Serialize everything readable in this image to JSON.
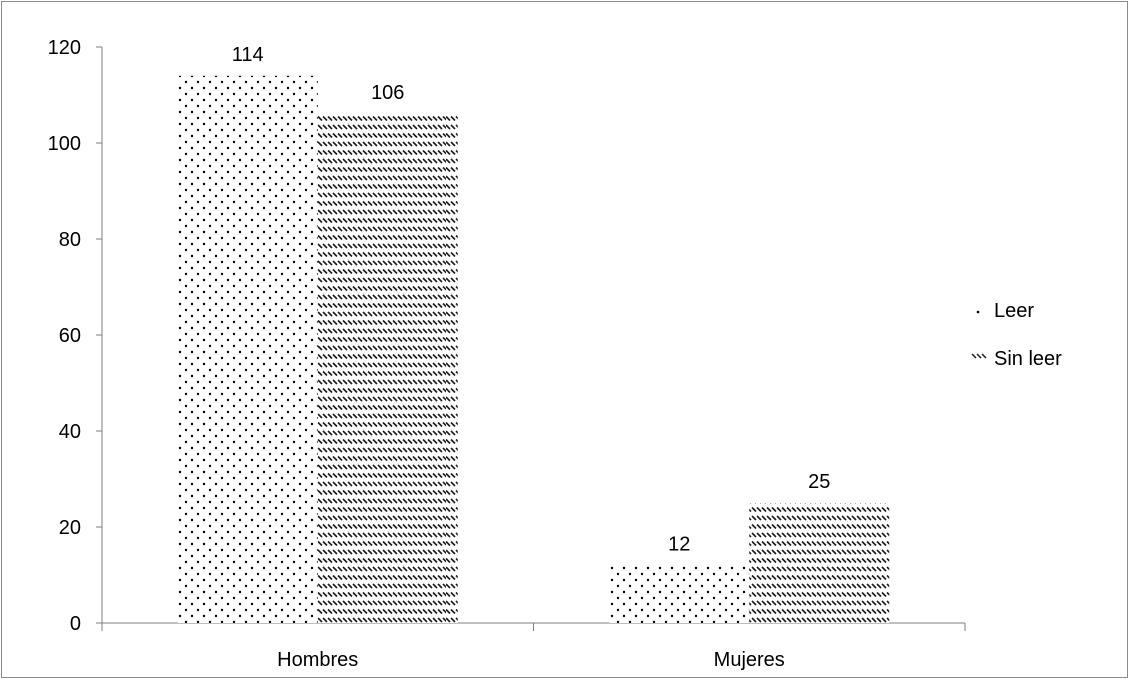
{
  "chart_data": {
    "type": "bar",
    "categories": [
      "Hombres",
      "Mujeres"
    ],
    "series": [
      {
        "name": "Leer",
        "values": [
          114,
          12
        ],
        "pattern": "dots"
      },
      {
        "name": "Sin leer",
        "values": [
          106,
          25
        ],
        "pattern": "hatch"
      }
    ],
    "ylim": [
      0,
      120
    ],
    "yticks": [
      0,
      20,
      40,
      60,
      80,
      100,
      120
    ],
    "data_labels": true,
    "grid": false,
    "legend_position": "right",
    "colors": {
      "axis": "#7f7f7f",
      "mark": "#000000",
      "frame": "#8c8c8c"
    }
  }
}
